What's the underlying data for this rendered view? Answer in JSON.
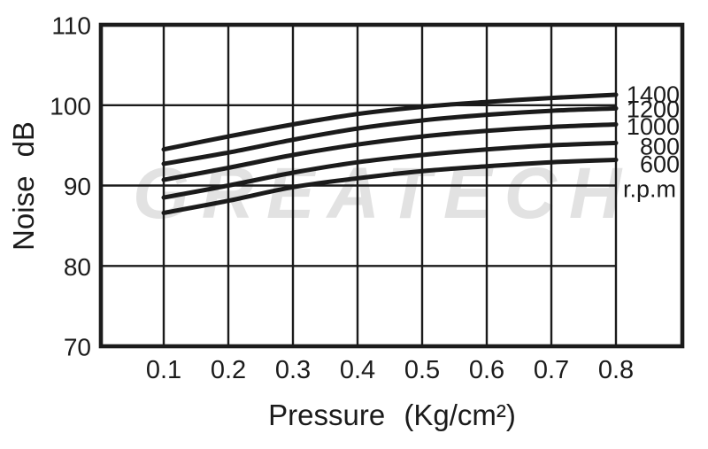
{
  "watermark": {
    "text": "GREATECH"
  },
  "chart_data": {
    "type": "line",
    "title": "",
    "xlabel": "Pressure (Kg/cm²)",
    "ylabel": "Noise dB",
    "x": [
      0.1,
      0.2,
      0.3,
      0.4,
      0.5,
      0.6,
      0.7,
      0.8
    ],
    "x_tick_labels": [
      "0.1",
      "0.2",
      "0.3",
      "0.4",
      "0.5",
      "0.6",
      "0.7",
      "0.8"
    ],
    "y_ticks": [
      110,
      100,
      90,
      80,
      70
    ],
    "ylim": [
      70,
      110
    ],
    "grid": true,
    "legend_position": "right-inside",
    "legend_unit_label": "r.p.m",
    "line_color": "#1b1b1b",
    "series": [
      {
        "name": "1400",
        "values": [
          94.5,
          96.1,
          97.6,
          98.9,
          99.8,
          100.4,
          100.9,
          101.3
        ]
      },
      {
        "name": "1200",
        "values": [
          92.7,
          94.1,
          95.7,
          97.1,
          98.1,
          98.8,
          99.3,
          99.6
        ]
      },
      {
        "name": "1000",
        "values": [
          90.7,
          92.2,
          93.8,
          95.1,
          96.1,
          96.8,
          97.3,
          97.6
        ]
      },
      {
        "name": "800",
        "values": [
          88.5,
          90.0,
          91.6,
          92.9,
          93.8,
          94.5,
          95.0,
          95.3
        ]
      },
      {
        "name": "600",
        "values": [
          86.6,
          88.1,
          89.8,
          90.9,
          91.8,
          92.4,
          92.9,
          93.2
        ]
      }
    ]
  }
}
